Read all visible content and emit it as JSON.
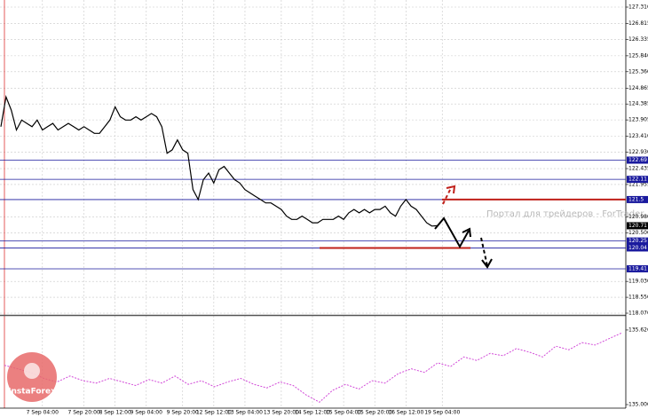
{
  "chart_data": [
    {
      "type": "line",
      "color": "#000000",
      "categories": [
        null,
        null,
        null,
        null,
        null,
        null,
        null,
        null,
        "7 Sep 04:00",
        null,
        null,
        null,
        null,
        null,
        null,
        null,
        "7 Sep 20:00",
        null,
        null,
        null,
        null,
        null,
        "8 Sep 12:00",
        null,
        null,
        null,
        null,
        null,
        "9 Sep 04:00",
        null,
        null,
        null,
        null,
        null,
        null,
        "9 Sep 20:00",
        null,
        null,
        null,
        null,
        null,
        "12 Sep 12:00",
        null,
        null,
        null,
        null,
        null,
        "13 Sep 04:00",
        null,
        null,
        null,
        null,
        null,
        null,
        "13 Sep 20:00",
        null,
        null,
        null,
        null,
        null,
        "14 Sep 12:00",
        null,
        null,
        null,
        null,
        null,
        "15 Sep 04:00",
        null,
        null,
        null,
        null,
        null,
        "15 Sep 20:00",
        null,
        null,
        null,
        null,
        null,
        "16 Sep 12:00",
        null,
        null,
        null,
        null,
        null,
        null,
        "19 Sep 04:00"
      ],
      "values": [
        123.7,
        124.6,
        124.2,
        123.6,
        123.9,
        123.8,
        123.7,
        123.9,
        123.6,
        123.7,
        123.8,
        123.6,
        123.7,
        123.8,
        123.7,
        123.6,
        123.7,
        123.6,
        123.5,
        123.5,
        123.7,
        123.9,
        124.3,
        124.0,
        123.9,
        123.9,
        124.0,
        123.9,
        124.0,
        124.1,
        124.0,
        123.7,
        122.9,
        123.0,
        123.3,
        123.0,
        122.9,
        121.8,
        121.5,
        122.1,
        122.3,
        122.0,
        122.4,
        122.5,
        122.3,
        122.1,
        122.0,
        121.8,
        121.7,
        121.6,
        121.5,
        121.4,
        121.4,
        121.3,
        121.2,
        121.0,
        120.9,
        120.9,
        121.0,
        120.9,
        120.8,
        120.8,
        120.9,
        120.9,
        120.9,
        121.0,
        120.9,
        121.1,
        121.2,
        121.1,
        121.2,
        121.1,
        121.2,
        121.2,
        121.3,
        121.1,
        121.0,
        121.3,
        121.5,
        121.3,
        121.2,
        121.0,
        120.8,
        120.7,
        120.71,
        null
      ],
      "ylim": [
        118.07,
        127.31
      ],
      "yticks": [
        {
          "value": 127.31,
          "label": "127.310"
        },
        126.815,
        126.335,
        {
          "value": 125.84,
          "label": "125.840"
        },
        {
          "value": 125.36,
          "label": "125.360"
        },
        124.865,
        124.385,
        123.905,
        {
          "value": 123.41,
          "label": "123.410"
        },
        {
          "value": 122.93,
          "label": "122.930"
        },
        122.435,
        121.955,
        {
          "value": 120.98,
          "label": "120.980"
        },
        {
          "value": 120.5,
          "label": "120.500"
        },
        {
          "value": 119.03,
          "label": "119.030"
        },
        {
          "value": 118.55,
          "label": "118.550"
        },
        {
          "value": 118.07,
          "label": "118.070"
        }
      ],
      "levels": [
        122.69,
        122.11,
        121.5,
        120.25,
        120.04,
        119.41
      ],
      "level_color": "#1a1a9e",
      "current_price": 120.71,
      "red_levels": [
        121.5,
        120.04
      ],
      "red_color": "#c0201a",
      "grid": true,
      "watermark": "Портал для трейдеров - ForTrader",
      "logo": "InstaForex"
    },
    {
      "type": "line",
      "color": "#d24ad8",
      "values": [
        135.33,
        135.3,
        135.27,
        135.22,
        135.19,
        135.24,
        135.2,
        135.18,
        135.22,
        135.19,
        135.16,
        135.21,
        135.18,
        135.24,
        135.17,
        135.2,
        135.15,
        135.19,
        135.22,
        135.17,
        135.14,
        135.19,
        135.16,
        135.08,
        135.02,
        135.12,
        135.17,
        135.13,
        135.2,
        135.18,
        135.26,
        135.3,
        135.27,
        135.35,
        135.32,
        135.4,
        135.37,
        135.43,
        135.41,
        135.47,
        135.44,
        135.4,
        135.49,
        135.46,
        135.52,
        135.5,
        135.55,
        135.6
      ],
      "ylim": [
        135.0,
        135.7
      ],
      "yticks": [
        135.626,
        {
          "value": 135,
          "label": "135.000"
        }
      ]
    }
  ]
}
